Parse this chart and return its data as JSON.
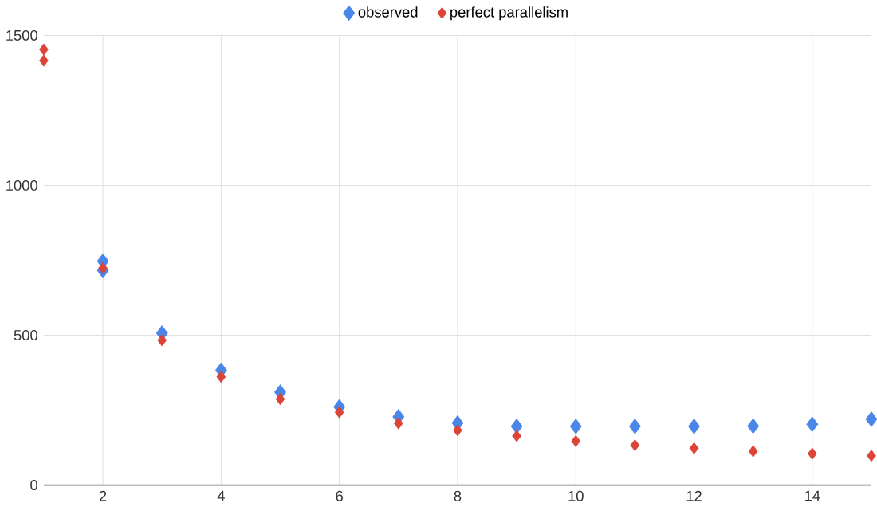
{
  "chart_data": {
    "type": "scatter",
    "marker": "diamond",
    "grid": true,
    "legend": "top",
    "xlim": [
      1,
      15
    ],
    "xticks": [
      2,
      4,
      6,
      8,
      10,
      12,
      14
    ],
    "ylim": [
      0,
      1500
    ],
    "yticks": [
      0,
      500,
      1000,
      1500
    ],
    "series": [
      {
        "name": "observed",
        "color": "#4a86e8",
        "x": [
          2,
          2,
          3,
          4,
          5,
          6,
          7,
          8,
          9,
          10,
          11,
          12,
          13,
          14,
          15
        ],
        "values": [
          747,
          716,
          507,
          383,
          310,
          261,
          228,
          207,
          196,
          196,
          196,
          196,
          197,
          203,
          220
        ]
      },
      {
        "name": "perfect parallelism",
        "color": "#db4437",
        "x": [
          1,
          1,
          2,
          3,
          4,
          5,
          6,
          7,
          8,
          9,
          10,
          11,
          12,
          13,
          14,
          15
        ],
        "values": [
          1453,
          1416,
          724,
          483,
          361,
          287,
          243,
          206,
          183,
          164,
          147,
          133,
          123,
          113,
          105,
          98
        ]
      }
    ]
  }
}
